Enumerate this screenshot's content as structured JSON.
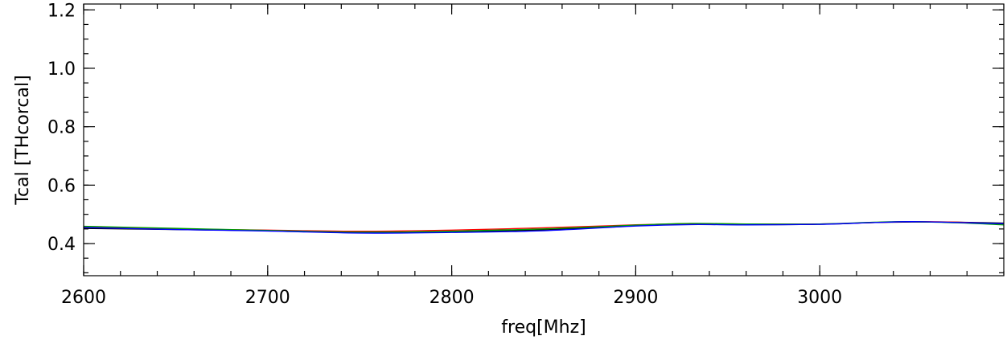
{
  "chart_data": {
    "type": "line",
    "title": "",
    "xlabel": "freq[Mhz]",
    "ylabel": "Tcal [THcorcal]",
    "xlim": [
      2600,
      3100
    ],
    "ylim": [
      0.29,
      1.22
    ],
    "xticks": [
      2600,
      2700,
      2800,
      2900,
      3000
    ],
    "xtick_labels": [
      "2600",
      "2700",
      "2800",
      "2900",
      "3000"
    ],
    "yticks": [
      0.4,
      0.6,
      0.8,
      1.0,
      1.2
    ],
    "ytick_labels": [
      "0.4",
      "0.6",
      "0.8",
      "1.0",
      "1.2"
    ],
    "x_minor_step": 20,
    "y_minor_step": 0.05,
    "grid": false,
    "series": [
      {
        "color": "#000000",
        "x": [
          2600,
          2650,
          2700,
          2750,
          2800,
          2850,
          2900,
          2930,
          2960,
          3000,
          3030,
          3050,
          3075,
          3100
        ],
        "y": [
          0.452,
          0.448,
          0.444,
          0.439,
          0.441,
          0.447,
          0.462,
          0.466,
          0.465,
          0.466,
          0.472,
          0.474,
          0.473,
          0.47
        ]
      },
      {
        "color": "#ff0000",
        "x": [
          2600,
          2650,
          2700,
          2750,
          2800,
          2850,
          2900,
          2930,
          2960,
          3000,
          3030,
          3050,
          3075,
          3100
        ],
        "y": [
          0.456,
          0.45,
          0.446,
          0.442,
          0.446,
          0.454,
          0.464,
          0.468,
          0.467,
          0.467,
          0.472,
          0.475,
          0.473,
          0.466
        ]
      },
      {
        "color": "#00a000",
        "x": [
          2600,
          2650,
          2700,
          2750,
          2800,
          2850,
          2900,
          2930,
          2960,
          3000,
          3030,
          3050,
          3075,
          3100
        ],
        "y": [
          0.459,
          0.452,
          0.445,
          0.439,
          0.442,
          0.45,
          0.463,
          0.469,
          0.467,
          0.467,
          0.473,
          0.475,
          0.471,
          0.464
        ]
      },
      {
        "color": "#0000ff",
        "x": [
          2600,
          2650,
          2700,
          2750,
          2800,
          2850,
          2900,
          2930,
          2960,
          3000,
          3030,
          3050,
          3075,
          3100
        ],
        "y": [
          0.455,
          0.448,
          0.443,
          0.436,
          0.438,
          0.444,
          0.46,
          0.465,
          0.464,
          0.466,
          0.472,
          0.475,
          0.472,
          0.468
        ]
      }
    ]
  }
}
